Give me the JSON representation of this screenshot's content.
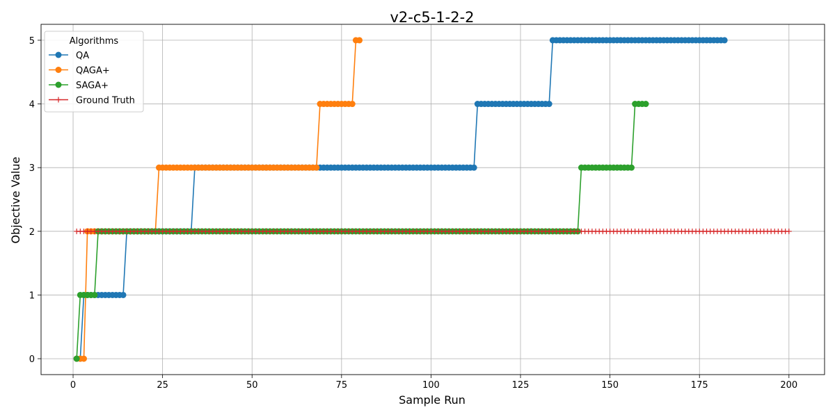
{
  "chart_data": {
    "type": "line",
    "title": "v2-c5-1-2-2",
    "xlabel": "Sample Run",
    "ylabel": "Objective Value",
    "xlim": [
      -8.95,
      209.95
    ],
    "ylim": [
      -0.25,
      5.25
    ],
    "xticks": [
      0,
      25,
      50,
      75,
      100,
      125,
      150,
      175,
      200
    ],
    "yticks": [
      0,
      1,
      2,
      3,
      4,
      5
    ],
    "grid": true,
    "legend": {
      "title": "Algorithms",
      "placement": "top-left"
    },
    "series": [
      {
        "name": "QA",
        "color": "#1f77b4",
        "marker": "circle",
        "steps": [
          {
            "from": 1,
            "to": 2,
            "value": 0
          },
          {
            "from": 3,
            "to": 14,
            "value": 1
          },
          {
            "from": 15,
            "to": 33,
            "value": 2
          },
          {
            "from": 34,
            "to": 112,
            "value": 3
          },
          {
            "from": 113,
            "to": 133,
            "value": 4
          },
          {
            "from": 134,
            "to": 182,
            "value": 5
          }
        ]
      },
      {
        "name": "QAGA+",
        "color": "#ff7f0e",
        "marker": "circle",
        "steps": [
          {
            "from": 1,
            "to": 3,
            "value": 0
          },
          {
            "from": 4,
            "to": 23,
            "value": 2
          },
          {
            "from": 24,
            "to": 68,
            "value": 3
          },
          {
            "from": 69,
            "to": 78,
            "value": 4
          },
          {
            "from": 79,
            "to": 80,
            "value": 5
          }
        ]
      },
      {
        "name": "SAGA+",
        "color": "#2ca02c",
        "marker": "circle",
        "steps": [
          {
            "from": 1,
            "to": 1,
            "value": 0
          },
          {
            "from": 2,
            "to": 6,
            "value": 1
          },
          {
            "from": 7,
            "to": 141,
            "value": 2
          },
          {
            "from": 142,
            "to": 156,
            "value": 3
          },
          {
            "from": 157,
            "to": 160,
            "value": 4
          }
        ]
      },
      {
        "name": "Ground Truth",
        "color": "#d62728",
        "marker": "plus",
        "steps": [
          {
            "from": 1,
            "to": 200,
            "value": 2
          }
        ]
      }
    ]
  }
}
